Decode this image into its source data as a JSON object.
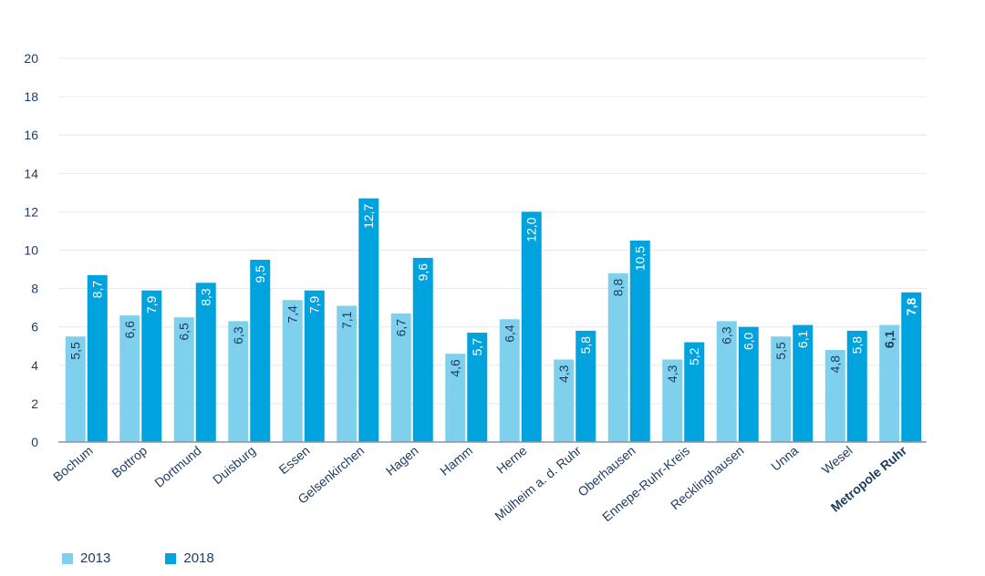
{
  "chart_data": {
    "type": "bar",
    "categories": [
      "Bochum",
      "Bottrop",
      "Dortmund",
      "Duisburg",
      "Essen",
      "Gelsenkirchen",
      "Hagen",
      "Hamm",
      "Herne",
      "Mülheim a. d. Ruhr",
      "Oberhausen",
      "Ennepe-Ruhr-Kreis",
      "Recklinghausen",
      "Unna",
      "Wesel",
      "Metropole Ruhr"
    ],
    "highlight_category": "Metropole Ruhr",
    "series": [
      {
        "name": "2013",
        "color": "#7fd0ec",
        "values": [
          5.5,
          6.6,
          6.5,
          6.3,
          7.4,
          7.1,
          6.7,
          4.6,
          6.4,
          4.3,
          8.8,
          4.3,
          6.3,
          5.5,
          4.8,
          6.1
        ],
        "labels": [
          "5,5",
          "6,6",
          "6,5",
          "6,3",
          "7,4",
          "7,1",
          "6,7",
          "4,6",
          "6,4",
          "4,3",
          "8,8",
          "4,3",
          "6,3",
          "5,5",
          "4,8",
          "6,1"
        ]
      },
      {
        "name": "2018",
        "color": "#00a3dd",
        "values": [
          8.7,
          7.9,
          8.3,
          9.5,
          7.9,
          12.7,
          9.6,
          5.7,
          12.0,
          5.8,
          10.5,
          5.2,
          6.0,
          6.1,
          5.8,
          7.8
        ],
        "labels": [
          "8,7",
          "7,9",
          "8,3",
          "9,5",
          "7,9",
          "12,7",
          "9,6",
          "5,7",
          "12,0",
          "5,8",
          "10,5",
          "5,2",
          "6,0",
          "6,1",
          "5,8",
          "7,8"
        ]
      }
    ],
    "ylim": [
      0,
      20
    ],
    "yticks": [
      0,
      2,
      4,
      6,
      8,
      10,
      12,
      14,
      16,
      18,
      20
    ],
    "grid": true,
    "legend_position": "bottom-left",
    "text_color": "#1d3a5f",
    "grid_color": "#e6eaee"
  }
}
